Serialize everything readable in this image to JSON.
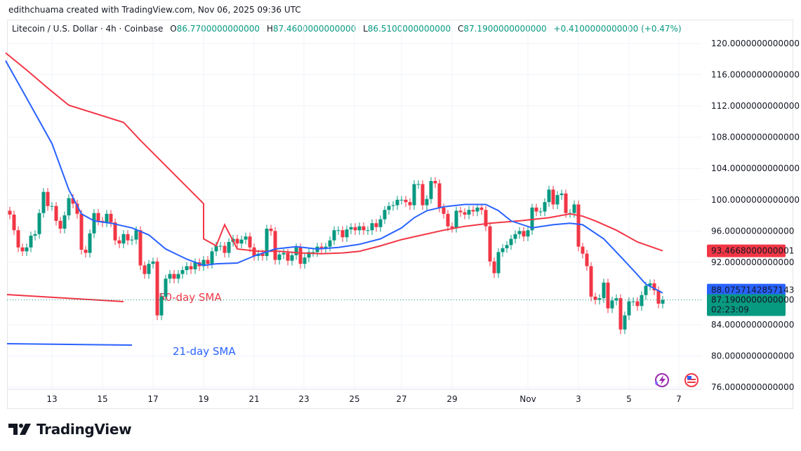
{
  "credit": "edithchuama created with TradingView.com, Nov 06, 2025 09:36 UTC",
  "legend": {
    "symbol": "Litecoin / U.S. Dollar · 4h · Coinbase",
    "o_label": "O",
    "o": "86.7700000000000",
    "h_label": "H",
    "h": "87.4600000000000",
    "l_label": "L",
    "l": "86.5100000000000",
    "c_label": "C",
    "c": "87.1900000000000",
    "change": "+0.4100000000000 (+0.47%)"
  },
  "colors": {
    "up": "#089981",
    "down": "#f23645",
    "sma21": "#2962ff",
    "sma50": "#f23645",
    "grid": "#f0f3fa"
  },
  "chart_data": {
    "type": "candlestick",
    "interval": "4h",
    "ylim": [
      76,
      120
    ],
    "grid": true,
    "y_ticks": [
      "120.0000000000000",
      "116.0000000000000",
      "112.0000000000000",
      "108.0000000000000",
      "104.0000000000000",
      "100.0000000000000",
      "96.0000000000000",
      "92.0000000000000",
      "84.0000000000000",
      "80.0000000000000",
      "76.0000000000000"
    ],
    "x_ticks": [
      "13",
      "15",
      "17",
      "19",
      "21",
      "23",
      "25",
      "27",
      "29",
      "Nov",
      "3",
      "5",
      "7"
    ],
    "first_open": 98.6,
    "closes": [
      98.1,
      96.1,
      93.9,
      93.4,
      93.9,
      95.4,
      95.6,
      98.3,
      101.0,
      99.2,
      99.2,
      97.3,
      96.3,
      98.0,
      100.2,
      99.5,
      98.2,
      93.6,
      93.2,
      95.7,
      98.3,
      97.3,
      97.1,
      98.2,
      97.1,
      94.8,
      94.4,
      95.6,
      94.8,
      94.9,
      96.1,
      91.6,
      90.5,
      91.8,
      92.1,
      85.2,
      87.6,
      89.9,
      90.5,
      89.9,
      90.5,
      91.0,
      91.5,
      91.1,
      92.0,
      91.5,
      92.3,
      91.8,
      93.4,
      94.1,
      94.1,
      93.2,
      94.6,
      95.0,
      94.4,
      94.9,
      95.3,
      93.9,
      92.8,
      93.1,
      92.8,
      96.3,
      96.0,
      92.3,
      93.0,
      93.2,
      92.2,
      92.9,
      93.9,
      91.8,
      92.6,
      93.3,
      93.3,
      94.0,
      93.8,
      94.0,
      94.8,
      96.1,
      96.1,
      95.2,
      96.2,
      96.5,
      96.1,
      96.6,
      96.1,
      96.1,
      97.0,
      96.5,
      97.5,
      98.7,
      99.2,
      99.3,
      100.0,
      100.0,
      99.7,
      99.3,
      102.0,
      102.0,
      99.3,
      100.1,
      102.4,
      102.1,
      99.0,
      98.2,
      96.6,
      96.4,
      98.6,
      98.4,
      98.1,
      98.7,
      98.5,
      99.0,
      98.7,
      96.6,
      92.1,
      90.6,
      93.3,
      93.8,
      94.2,
      95.0,
      95.6,
      96.0,
      95.3,
      96.1,
      99.0,
      98.5,
      98.5,
      99.7,
      101.3,
      99.4,
      100.6,
      100.8,
      98.3,
      98.3,
      99.4,
      94.0,
      93.1,
      91.5,
      87.6,
      87.2,
      87.4,
      89.4,
      86.1,
      87.1,
      87.4,
      83.4,
      85.2,
      87.0,
      87.0,
      86.4,
      87.8,
      89.0,
      89.3,
      88.4,
      86.7,
      87.19
    ],
    "sma21": [
      [
        -1,
        117.8
      ],
      [
        4,
        113.0
      ],
      [
        10,
        107.2
      ],
      [
        14,
        101.3
      ],
      [
        17,
        98.2
      ],
      [
        20,
        97.3
      ],
      [
        24,
        97.0
      ],
      [
        29,
        96.4
      ],
      [
        33,
        95.5
      ],
      [
        37,
        93.7
      ],
      [
        42,
        92.4
      ],
      [
        46,
        91.6
      ],
      [
        49,
        91.8
      ],
      [
        54,
        91.9
      ],
      [
        58,
        92.8
      ],
      [
        63,
        93.7
      ],
      [
        68,
        94.0
      ],
      [
        73,
        93.7
      ],
      [
        78,
        93.9
      ],
      [
        83,
        94.3
      ],
      [
        88,
        95.0
      ],
      [
        93,
        96.4
      ],
      [
        96,
        97.7
      ],
      [
        99,
        98.6
      ],
      [
        103,
        99.1
      ],
      [
        108,
        99.4
      ],
      [
        113,
        99.4
      ],
      [
        116,
        98.6
      ],
      [
        119,
        97.3
      ],
      [
        124,
        96.4
      ],
      [
        129,
        96.8
      ],
      [
        133,
        97.0
      ],
      [
        136,
        96.8
      ],
      [
        141,
        95.0
      ],
      [
        144,
        93.3
      ],
      [
        148,
        91.0
      ],
      [
        151,
        89.2
      ],
      [
        155,
        88.0757142857143
      ]
    ],
    "sma50": [
      [
        -1,
        118.8
      ],
      [
        4,
        116.6
      ],
      [
        9,
        114.3
      ],
      [
        14,
        112.1
      ],
      [
        27,
        109.9
      ],
      [
        31,
        107.6
      ],
      [
        36,
        104.9
      ],
      [
        41,
        102.2
      ],
      [
        46,
        99.5
      ],
      [
        51,
        96.8
      ],
      [
        46,
        95.0
      ],
      [
        49,
        94.1
      ],
      [
        54,
        93.7
      ],
      [
        59,
        93.4
      ],
      [
        64,
        93.4
      ],
      [
        69,
        93.2
      ],
      [
        74,
        93.1
      ],
      [
        79,
        93.2
      ],
      [
        83,
        93.4
      ],
      [
        88,
        94.1
      ],
      [
        93,
        94.9
      ],
      [
        98,
        95.5
      ],
      [
        103,
        96.1
      ],
      [
        108,
        96.6
      ],
      [
        114,
        97.0
      ],
      [
        121,
        97.3
      ],
      [
        128,
        97.7
      ],
      [
        133,
        98.2
      ],
      [
        136,
        97.9
      ],
      [
        139,
        97.3
      ],
      [
        144,
        96.1
      ],
      [
        149,
        94.6
      ],
      [
        155,
        93.4668000000001
      ]
    ],
    "sma21_price_label": "88.0757142857143",
    "sma50_price_label": "93.4668000000001",
    "last_price_label": "87.1900000000000",
    "countdown": "02:23:09",
    "annotations": [
      "50-day SMA",
      "21-day SMA"
    ]
  },
  "logo_text": "TradingView"
}
